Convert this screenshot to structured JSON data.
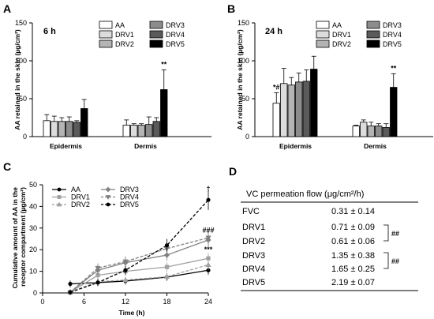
{
  "panels": {
    "a": "A",
    "b": "B",
    "c": "C",
    "d": "D"
  },
  "chart_data": [
    {
      "id": "A",
      "type": "bar",
      "condition": "6 h",
      "ylabel": "AA retained in the skin (µg/cm²)",
      "ylim": [
        0,
        150
      ],
      "yticks": [
        0,
        50,
        100,
        150
      ],
      "categories": [
        "Epidermis",
        "Dermis"
      ],
      "series": [
        {
          "name": "AA",
          "color": "#ffffff",
          "values": [
            21,
            15
          ],
          "errors": [
            8,
            7
          ]
        },
        {
          "name": "DRV1",
          "color": "#dcdcdc",
          "values": [
            20,
            15
          ],
          "errors": [
            7,
            2
          ]
        },
        {
          "name": "DRV2",
          "color": "#b4b4b4",
          "values": [
            20,
            15
          ],
          "errors": [
            5,
            2
          ]
        },
        {
          "name": "DRV3",
          "color": "#8c8c8c",
          "values": [
            20,
            16
          ],
          "errors": [
            6,
            10
          ]
        },
        {
          "name": "DRV4",
          "color": "#5a5a5a",
          "values": [
            19,
            20
          ],
          "errors": [
            2,
            5
          ]
        },
        {
          "name": "DRV5",
          "color": "#000000",
          "values": [
            37,
            62
          ],
          "errors": [
            12,
            26
          ]
        }
      ],
      "annotations": [
        {
          "category": "Dermis",
          "series": "DRV5",
          "text": "**"
        }
      ],
      "legend": "top-right"
    },
    {
      "id": "B",
      "type": "bar",
      "condition": "24 h",
      "ylabel": "AA retained in the skin (µg/cm²)",
      "ylim": [
        0,
        150
      ],
      "yticks": [
        0,
        50,
        100,
        150
      ],
      "categories": [
        "Epidermis",
        "Dermis"
      ],
      "series": [
        {
          "name": "AA",
          "color": "#ffffff",
          "values": [
            44,
            14
          ],
          "errors": [
            14,
            1
          ]
        },
        {
          "name": "DRV1",
          "color": "#dcdcdc",
          "values": [
            70,
            19
          ],
          "errors": [
            20,
            3
          ]
        },
        {
          "name": "DRV2",
          "color": "#b4b4b4",
          "values": [
            68,
            14
          ],
          "errors": [
            10,
            5
          ]
        },
        {
          "name": "DRV3",
          "color": "#8c8c8c",
          "values": [
            72,
            14
          ],
          "errors": [
            12,
            3
          ]
        },
        {
          "name": "DRV4",
          "color": "#5a5a5a",
          "values": [
            73,
            12
          ],
          "errors": [
            15,
            5
          ]
        },
        {
          "name": "DRV5",
          "color": "#000000",
          "values": [
            89,
            65
          ],
          "errors": [
            17,
            18
          ]
        }
      ],
      "annotations": [
        {
          "category": "Epidermis",
          "series": "AA",
          "text": "*#"
        },
        {
          "category": "Dermis",
          "series": "DRV5",
          "text": "**"
        }
      ],
      "legend": "top-right"
    },
    {
      "id": "C",
      "type": "line",
      "xlabel": "Time (h)",
      "ylabel": "Cumulative amount of AA in the receptor compartment (µg/cm²)",
      "xlim": [
        0,
        24
      ],
      "ylim": [
        0,
        50
      ],
      "xticks": [
        0,
        6,
        12,
        18,
        24
      ],
      "yticks": [
        0,
        10,
        20,
        30,
        40,
        50
      ],
      "series": [
        {
          "name": "AA",
          "marker": "circle",
          "color": "#000000",
          "dash": false,
          "x": [
            4,
            8,
            12,
            18,
            24
          ],
          "y": [
            4.2,
            4.8,
            5.5,
            7.3,
            10.5
          ]
        },
        {
          "name": "DRV1",
          "marker": "square",
          "color": "#a0a0a0",
          "dash": false,
          "x": [
            4,
            8,
            12,
            18,
            24
          ],
          "y": [
            0.3,
            8.2,
            10.0,
            12.0,
            16.0
          ]
        },
        {
          "name": "DRV2",
          "marker": "triangle",
          "color": "#a0a0a0",
          "dash": true,
          "x": [
            4,
            8,
            12,
            18,
            24
          ],
          "y": [
            0.3,
            5.2,
            6.0,
            7.5,
            13.0
          ]
        },
        {
          "name": "DRV3",
          "marker": "diamond",
          "color": "#808080",
          "dash": false,
          "x": [
            4,
            8,
            12,
            18,
            24
          ],
          "y": [
            0.3,
            10.5,
            14.0,
            17.5,
            24.5
          ]
        },
        {
          "name": "DRV4",
          "marker": "triangle-down",
          "color": "#808080",
          "dash": true,
          "x": [
            4,
            8,
            12,
            18,
            24
          ],
          "y": [
            0.3,
            11.5,
            14.5,
            20.5,
            25.5
          ]
        },
        {
          "name": "DRV5",
          "marker": "circle",
          "color": "#000000",
          "dash": true,
          "x": [
            4,
            8,
            12,
            18,
            24
          ],
          "y": [
            0.3,
            4.8,
            10.5,
            22.0,
            43.0
          ]
        }
      ],
      "annotations": [
        {
          "x": 24,
          "y": 47,
          "text": "†"
        },
        {
          "x": 24,
          "y": 28,
          "text": "###"
        },
        {
          "x": 24,
          "y": 19,
          "text": "***"
        }
      ],
      "legend": "top-left"
    },
    {
      "id": "D",
      "type": "table",
      "header": "VC permeation flow (μg/cm²/h)",
      "rows": [
        {
          "label": "FVC",
          "value": "0.31 ± 0.14"
        },
        {
          "label": "DRV1",
          "value": "0.71 ± 0.09"
        },
        {
          "label": "DRV2",
          "value": "0.61 ± 0.06"
        },
        {
          "label": "DRV3",
          "value": "1.35 ± 0.38"
        },
        {
          "label": "DRV4",
          "value": "1.65 ± 0.25"
        },
        {
          "label": "DRV5",
          "value": "2.19 ± 0.07"
        }
      ],
      "brackets": [
        {
          "rows": [
            1,
            2
          ],
          "text": "##"
        },
        {
          "rows": [
            3,
            4
          ],
          "text": "##"
        }
      ]
    }
  ]
}
